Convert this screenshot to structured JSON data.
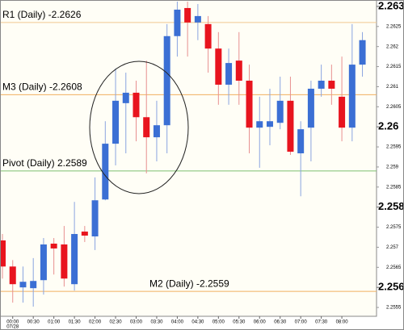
{
  "chart_data": {
    "type": "candlestick",
    "categories": [
      null,
      "00:00",
      null,
      "00:30",
      null,
      "01:00",
      null,
      "01:30",
      null,
      "02:00",
      null,
      "02:30",
      null,
      "03:00",
      null,
      "03:30",
      null,
      "04:00",
      null,
      "04:30",
      null,
      "05:00",
      null,
      "05:30",
      null,
      "06:00",
      null,
      "06:30",
      null,
      "07:00",
      null,
      "07:30",
      null,
      "08:00",
      null,
      null
    ],
    "date_label": "07/28",
    "open": [
      2.25717,
      2.25652,
      2.256,
      2.25598,
      2.25618,
      2.25709,
      2.25707,
      2.25608,
      2.25739,
      2.25727,
      2.25819,
      2.25958,
      2.26059,
      2.26085,
      2.26024,
      2.25974,
      2.26004,
      2.26226,
      2.26296,
      2.2626,
      2.26256,
      2.26195,
      2.26105,
      2.26165,
      2.26115,
      2.25998,
      2.26,
      2.2601,
      2.26065,
      2.25934,
      2.25998,
      2.26095,
      2.26115,
      2.26075,
      2.25998,
      2.26155
    ],
    "high": [
      2.25733,
      2.25668,
      2.25652,
      2.25673,
      2.25723,
      2.25723,
      2.25753,
      2.25813,
      2.25753,
      2.25874,
      2.26014,
      2.26145,
      2.26135,
      2.26115,
      2.26165,
      2.26065,
      2.26256,
      2.26312,
      2.26312,
      2.26306,
      2.26276,
      2.26236,
      2.26195,
      2.26236,
      2.26155,
      2.26075,
      2.26095,
      2.26125,
      2.26125,
      2.26014,
      2.26115,
      2.26155,
      2.26155,
      2.26175,
      2.26256,
      2.26236
    ],
    "low": [
      2.25622,
      2.25562,
      2.25562,
      2.25552,
      2.25582,
      2.25632,
      2.25602,
      2.25592,
      2.25713,
      2.25693,
      2.25817,
      2.25904,
      2.25934,
      2.25964,
      2.25884,
      2.25914,
      2.25934,
      2.26175,
      2.26175,
      2.26216,
      2.26135,
      2.26055,
      2.26055,
      2.26055,
      2.25934,
      2.25898,
      2.25954,
      2.25994,
      2.2593,
      2.25827,
      2.25914,
      2.26075,
      2.26055,
      2.25964,
      2.25964,
      2.26125
    ],
    "close": [
      2.25652,
      2.25608,
      2.25614,
      2.25616,
      2.25707,
      2.25697,
      2.25622,
      2.25733,
      2.25729,
      2.25817,
      2.25958,
      2.26065,
      2.26085,
      2.26024,
      2.25974,
      2.26004,
      2.26226,
      2.26292,
      2.2626,
      2.26276,
      2.26195,
      2.26105,
      2.26159,
      2.26115,
      2.25998,
      2.26014,
      2.26014,
      2.26065,
      2.25938,
      2.25994,
      2.26095,
      2.26115,
      2.26095,
      2.25998,
      2.26155,
      2.26216
    ],
    "up_color": "#3b6fd4",
    "down_color": "#e8141e",
    "ylim": [
      2.25528,
      2.26316
    ],
    "yticks": [
      2.263,
      2.26,
      2.258,
      2.256
    ],
    "yticks_minor": [
      2.2625,
      2.262,
      2.2615,
      2.261,
      2.2605,
      2.2595,
      2.259,
      2.2585,
      2.2575,
      2.257,
      2.2565,
      2.2555
    ],
    "lines": [
      {
        "label": "R1 (Daily) -2.2626",
        "value": 2.2626,
        "color": "#f0c890"
      },
      {
        "label": "M3 (Daily) -2.2608",
        "value": 2.2608,
        "color": "#f0b060"
      },
      {
        "label": "Pivot (Daily) 2.2589",
        "value": 2.2589,
        "color": "#7cc070"
      },
      {
        "label": "M2 (Daily) -2.2559",
        "value": 2.2559,
        "color": "#f0b060"
      }
    ]
  }
}
